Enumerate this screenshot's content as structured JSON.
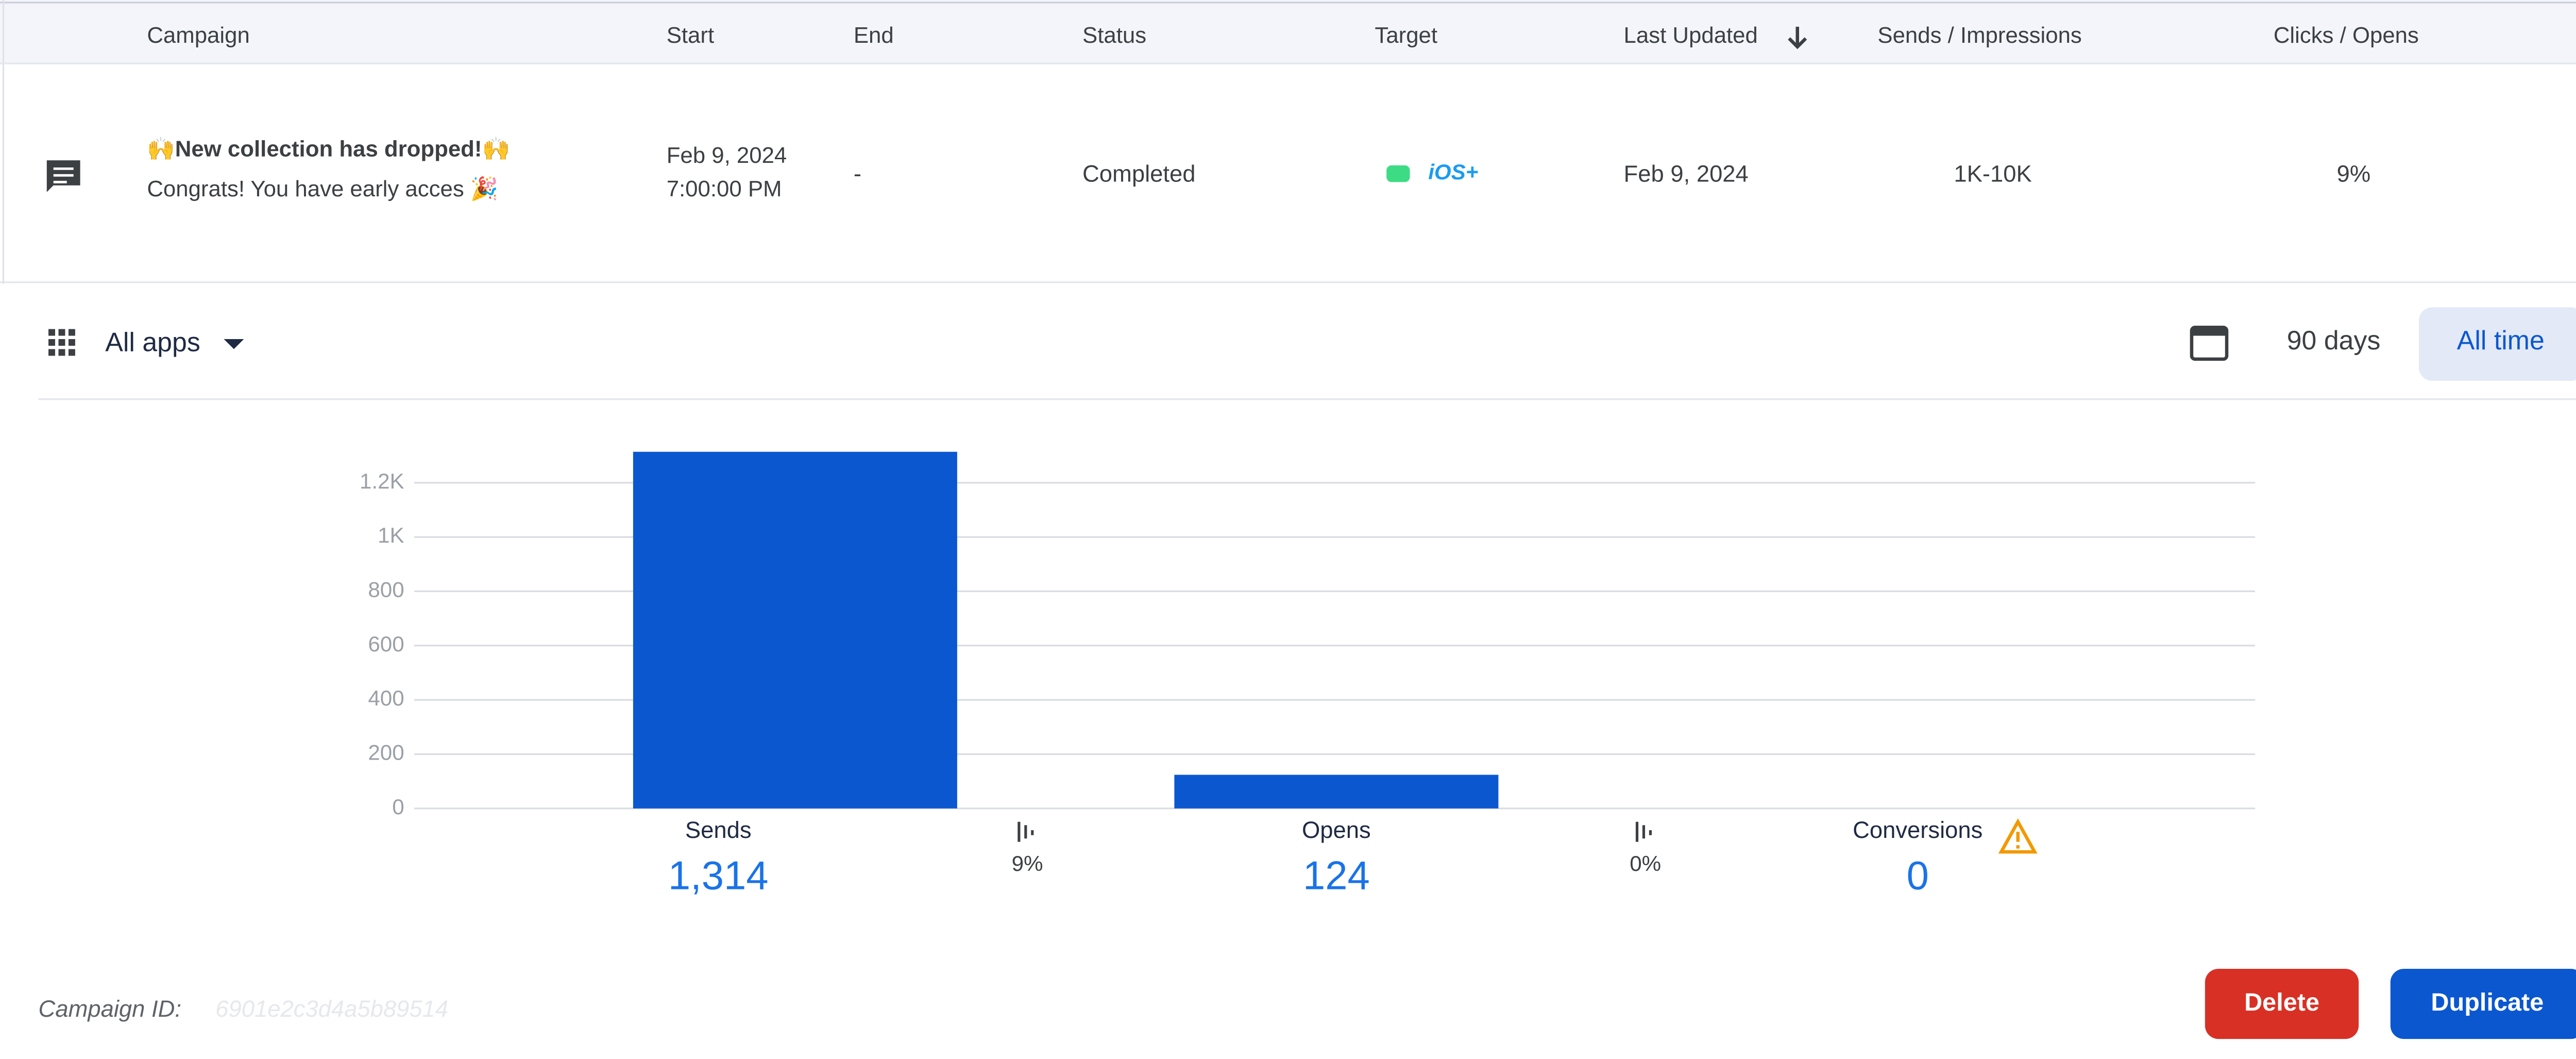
{
  "table": {
    "headers": [
      "Campaign",
      "Start",
      "End",
      "Status",
      "Target",
      "Last Updated",
      "Sends / Impressions",
      "Clicks / Opens"
    ],
    "rows": [
      {
        "title": "🙌New collection has dropped!🙌",
        "message": "Congrats! You have early acces 🎉",
        "start_date": "Feb 9, 2024",
        "start_time": "7:00:00 PM",
        "end": "-",
        "status": "Completed",
        "target": "iOS+",
        "last_updated": "Feb 9, 2024",
        "sends": "1K-10K",
        "clicks": "9%"
      }
    ]
  },
  "toolbar": {
    "app_filter": "All apps",
    "ranges": [
      "90 days",
      "All time"
    ]
  },
  "chart_data": {
    "type": "bar",
    "categories": [
      "Sends",
      "Opens",
      "Conversions"
    ],
    "values": [
      1314,
      124,
      0
    ],
    "value_labels": [
      "1,314",
      "124",
      "0"
    ],
    "rates": [
      "9%",
      "0%"
    ],
    "color": "#0b57d0",
    "ylim": [
      0,
      1200
    ],
    "yticks": [
      0,
      200,
      400,
      600,
      800,
      {
        "value": 1000,
        "label": "1K"
      },
      {
        "value": 1200,
        "label": "1.2K"
      }
    ],
    "grid": true
  },
  "footer": {
    "id_label": "Campaign ID:",
    "id": "6901e2c3d4a5b89514",
    "buttons": [
      "Delete",
      "Duplicate"
    ]
  }
}
